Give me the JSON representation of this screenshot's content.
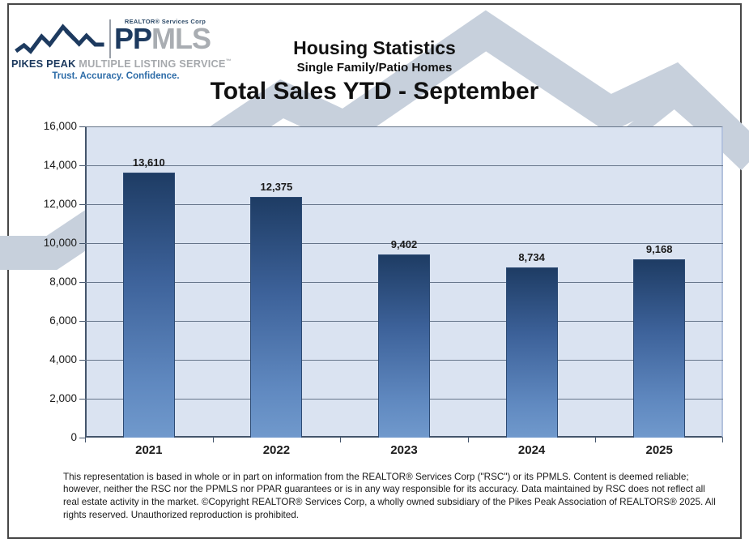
{
  "logo": {
    "realtor_corp": "REALTOR® Services Corp",
    "brand_pp": "PP",
    "brand_mls": "MLS",
    "name_bold": "PIKES PEAK",
    "name_rest": " MULTIPLE LISTING SERVICE",
    "name_mark": "™",
    "tagline": "Trust. Accuracy. Confidence."
  },
  "header": {
    "title": "Housing Statistics",
    "subtitle": "Single Family/Patio Homes",
    "chart_title": "Total Sales YTD - September"
  },
  "chart_data": {
    "type": "bar",
    "title": "Total Sales YTD - September",
    "categories": [
      "2021",
      "2022",
      "2023",
      "2024",
      "2025"
    ],
    "values": [
      13610,
      12375,
      9402,
      8734,
      9168
    ],
    "value_labels": [
      "13,610",
      "12,375",
      "9,402",
      "8,734",
      "9,168"
    ],
    "xlabel": "",
    "ylabel": "",
    "ylim": [
      0,
      16000
    ],
    "ytick_step": 2000,
    "ytick_labels": [
      "0",
      "2,000",
      "4,000",
      "6,000",
      "8,000",
      "10,000",
      "12,000",
      "14,000",
      "16,000"
    ],
    "grid": true,
    "legend": false,
    "plot_bg": "#dae3f1",
    "bar_gradient": [
      "#1e3c64",
      "#3d629a",
      "#6089c0",
      "#7099cc"
    ],
    "bar_border": "#2c4a73",
    "gridline_color": "#66758a",
    "axis_color": "#44556b"
  },
  "footer": {
    "disclaimer": "This representation is based in whole or in part on information from the REALTOR® Services Corp (\"RSC\") or its PPMLS. Content is deemed reliable; however, neither the RSC nor the PPMLS nor PPAR guarantees or is in any way responsible for its accuracy. Data maintained by RSC does not reflect all real estate activity in the market. ©Copyright REALTOR® Services Corp, a wholly owned subsidiary of the Pikes Peak Association of REALTORS® 2025. All rights reserved. Unauthorized reproduction is prohibited."
  },
  "colors": {
    "brand_navy": "#1d3a5f",
    "brand_gray": "#a9adb2",
    "tagline_blue": "#2d6ca8",
    "watermark_gray": "#c7d0dc",
    "page_border": "#474747"
  }
}
